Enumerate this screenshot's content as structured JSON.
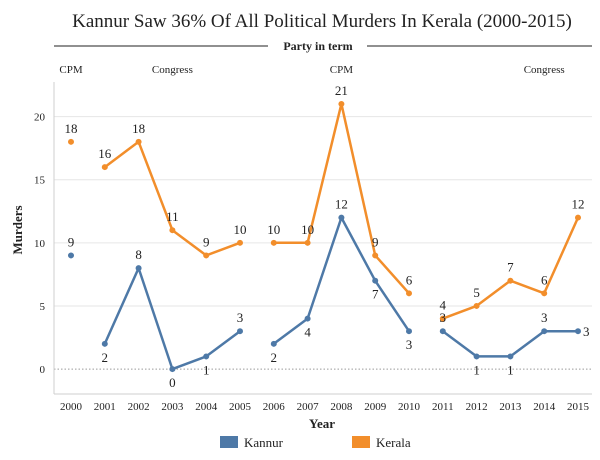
{
  "chart_data": {
    "type": "line",
    "title": "Kannur Saw 36% Of All Political Murders In Kerala (2000-2015)",
    "party_header": "Party in term",
    "party_terms": [
      {
        "label": "CPM",
        "year": 2000
      },
      {
        "label": "Congress",
        "year": 2003
      },
      {
        "label": "CPM",
        "year": 2008
      },
      {
        "label": "Congress",
        "year": 2014
      }
    ],
    "xlabel": "Year",
    "ylabel": "Murders",
    "x": [
      2000,
      2001,
      2002,
      2003,
      2004,
      2005,
      2006,
      2007,
      2008,
      2009,
      2010,
      2011,
      2012,
      2013,
      2014,
      2015
    ],
    "ylim": [
      -1.5,
      22.5
    ],
    "yticks": [
      0,
      5,
      10,
      15,
      20
    ],
    "segments": [
      [
        2000
      ],
      [
        2001,
        2002,
        2003,
        2004,
        2005
      ],
      [
        2006,
        2007,
        2008,
        2009,
        2010
      ],
      [
        2011,
        2012,
        2013,
        2014,
        2015
      ]
    ],
    "series": [
      {
        "name": "Kannur",
        "color": "#4e79a7",
        "values": [
          9,
          2,
          8,
          0,
          1,
          3,
          2,
          4,
          12,
          7,
          3,
          3,
          1,
          1,
          3,
          3
        ],
        "label_pos": [
          "above",
          "below",
          "above",
          "below",
          "below",
          "above",
          "below",
          "below",
          "above",
          "below",
          "below",
          "above",
          "below",
          "below",
          "above",
          "right"
        ]
      },
      {
        "name": "Kerala",
        "color": "#f28e2b",
        "values": [
          18,
          16,
          18,
          11,
          9,
          10,
          10,
          10,
          21,
          9,
          6,
          4,
          5,
          7,
          6,
          12
        ],
        "label_pos": [
          "above",
          "above",
          "above",
          "above",
          "above",
          "above",
          "above",
          "above",
          "above",
          "above",
          "above",
          "above",
          "above",
          "above",
          "above",
          "above"
        ]
      }
    ]
  }
}
